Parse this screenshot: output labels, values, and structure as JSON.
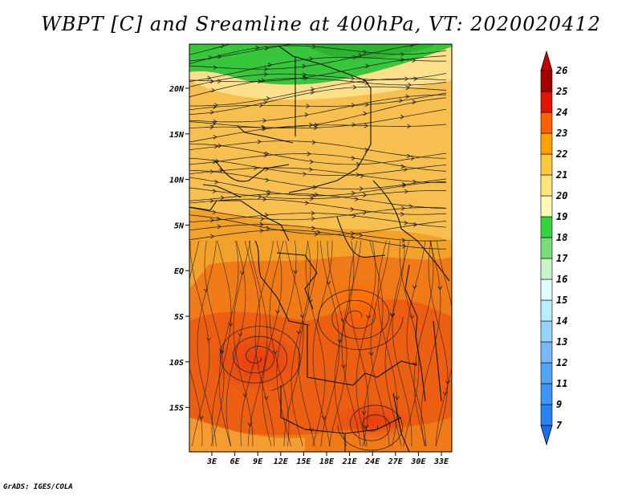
{
  "title": "WBPT [C] and Sreamline at 400hPa, VT: 2020020412",
  "credit": "GrADS: IGES/COLA",
  "map": {
    "lat_ticks": [
      "20N",
      "15N",
      "10N",
      "5N",
      "EQ",
      "5S",
      "10S",
      "15S"
    ],
    "lon_ticks": [
      "3E",
      "6E",
      "9E",
      "12E",
      "15E",
      "18E",
      "21E",
      "24E",
      "27E",
      "30E",
      "33E"
    ]
  },
  "colorbar": {
    "labels": [
      "7",
      "9",
      "11",
      "12",
      "13",
      "14",
      "15",
      "16",
      "17",
      "18",
      "19",
      "20",
      "21",
      "22",
      "23",
      "24",
      "25",
      "26"
    ],
    "colors": [
      "#1e6eeb",
      "#2882f0",
      "#3c96f5",
      "#50a5f5",
      "#78b9fa",
      "#96d2fa",
      "#b4f0fa",
      "#e1ffff",
      "#c8f5c8",
      "#78dc78",
      "#37d23c",
      "#fffab4",
      "#ffe678",
      "#ffc83c",
      "#ffa000",
      "#ff6000",
      "#e11400",
      "#a50000",
      "#c80000"
    ]
  }
}
